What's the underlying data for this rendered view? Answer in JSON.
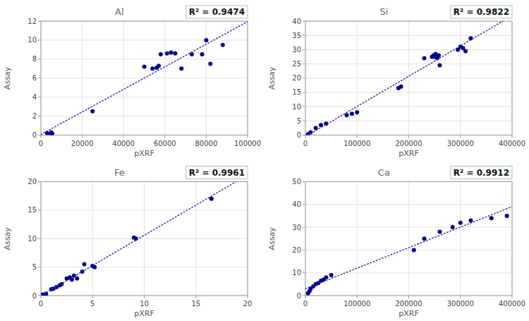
{
  "chart_data": [
    {
      "type": "scatter",
      "title": "Al",
      "annotation": "R² = 0.9474",
      "xlabel": "pXRF",
      "ylabel": "Assay",
      "xlim": [
        0,
        100000
      ],
      "ylim": [
        0,
        12
      ],
      "xticks": [
        0,
        20000,
        40000,
        60000,
        80000,
        100000
      ],
      "yticks": [
        0,
        2,
        4,
        6,
        8,
        10,
        12
      ],
      "grid": true,
      "series": [
        {
          "type": "scatter",
          "color": "#00008B",
          "x": [
            3000,
            4500,
            5000,
            5500,
            25000,
            50000,
            54000,
            56000,
            57000,
            58000,
            61000,
            63000,
            65000,
            68000,
            73000,
            78000,
            80000,
            82000,
            88000
          ],
          "values": [
            0.2,
            0.1,
            0.3,
            0.15,
            2.5,
            7.2,
            7.0,
            7.1,
            7.3,
            8.5,
            8.6,
            8.7,
            8.6,
            7.0,
            8.5,
            8.5,
            10.0,
            7.5,
            9.5
          ]
        },
        {
          "type": "line",
          "line_style": "dotted",
          "color": "#3333AA",
          "x": [
            0,
            100000
          ],
          "values": [
            0.0677,
            11.9492
          ]
        }
      ]
    },
    {
      "type": "scatter",
      "title": "Si",
      "annotation": "R² = 0.9822",
      "xlabel": "pXRF",
      "ylabel": "Assay",
      "xlim": [
        0,
        400000
      ],
      "ylim": [
        0,
        40
      ],
      "xticks": [
        0,
        100000,
        200000,
        300000,
        400000
      ],
      "yticks": [
        0,
        5,
        10,
        15,
        20,
        25,
        30,
        35,
        40
      ],
      "grid": true,
      "series": [
        {
          "type": "scatter",
          "color": "#00008B",
          "x": [
            5000,
            10000,
            20000,
            30000,
            40000,
            80000,
            90000,
            100000,
            180000,
            185000,
            230000,
            245000,
            248000,
            250000,
            252000,
            255000,
            258000,
            260000,
            295000,
            300000,
            305000,
            310000,
            320000
          ],
          "values": [
            0.3,
            1.0,
            2.5,
            3.5,
            4.0,
            7.0,
            7.5,
            8.0,
            16.5,
            17.0,
            27.0,
            27.5,
            28.0,
            27.5,
            28.5,
            27.0,
            28.0,
            24.5,
            30.0,
            31.0,
            30.5,
            29.5,
            34.0
          ]
        },
        {
          "type": "line",
          "line_style": "dotted",
          "color": "#3333AA",
          "x": [
            5106,
            382173
          ],
          "values": [
            0,
            40
          ]
        }
      ]
    },
    {
      "type": "scatter",
      "title": "Fe",
      "annotation": "R² = 0.9961",
      "xlabel": "pXRF",
      "ylabel": "Assay",
      "xlim": [
        0,
        20
      ],
      "ylim": [
        0,
        20
      ],
      "xticks": [
        0,
        5,
        10,
        15,
        20
      ],
      "yticks": [
        0,
        5,
        10,
        15,
        20
      ],
      "grid": true,
      "series": [
        {
          "type": "scatter",
          "color": "#00008B",
          "x": [
            0.1,
            0.2,
            0.3,
            0.5,
            1.0,
            1.2,
            1.5,
            1.8,
            2.0,
            2.5,
            2.8,
            3.0,
            3.2,
            3.5,
            4.0,
            4.2,
            5.0,
            5.2,
            9.0,
            9.2,
            16.5
          ],
          "values": [
            0.1,
            0.2,
            0.15,
            0.3,
            1.1,
            1.2,
            1.5,
            1.8,
            2.0,
            3.0,
            3.2,
            2.8,
            3.5,
            3.0,
            4.2,
            5.5,
            5.2,
            5.0,
            10.2,
            10.0,
            17.0
          ]
        },
        {
          "type": "line",
          "line_style": "dotted",
          "color": "#3333AA",
          "x": [
            0.0154,
            18.8855
          ],
          "values": [
            0,
            20
          ]
        }
      ]
    },
    {
      "type": "scatter",
      "title": "Ca",
      "annotation": "R² = 0.9912",
      "xlabel": "pXRF",
      "ylabel": "Assay",
      "xlim": [
        0,
        400000
      ],
      "ylim": [
        0,
        50
      ],
      "xticks": [
        0,
        100000,
        200000,
        300000,
        400000
      ],
      "yticks": [
        0,
        10,
        20,
        30,
        40,
        50
      ],
      "grid": true,
      "series": [
        {
          "type": "scatter",
          "color": "#00008B",
          "x": [
            5000,
            8000,
            10000,
            15000,
            20000,
            25000,
            30000,
            35000,
            40000,
            50000,
            210000,
            230000,
            260000,
            285000,
            300000,
            320000,
            360000,
            390000
          ],
          "values": [
            1.0,
            2.0,
            3.0,
            4.0,
            5.0,
            5.5,
            6.5,
            7.0,
            8.0,
            9.0,
            20.0,
            25.0,
            28.0,
            30.0,
            32.0,
            33.0,
            34.0,
            35.0
          ]
        },
        {
          "type": "line",
          "line_style": "dotted",
          "color": "#3333AA",
          "x": [
            0,
            400000
          ],
          "values": [
            3.0205,
            39.0608
          ]
        }
      ]
    }
  ]
}
